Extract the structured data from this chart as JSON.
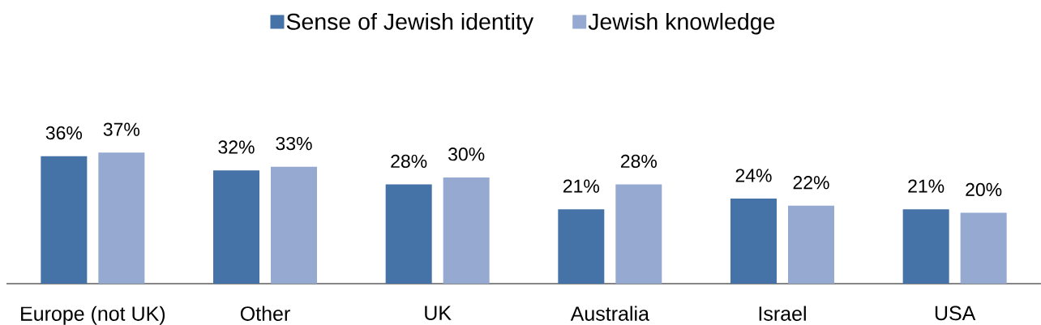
{
  "chart_data": {
    "type": "bar",
    "categories": [
      "Europe (not UK)",
      "Other",
      "UK",
      "Australia",
      "Israel",
      "USA"
    ],
    "series": [
      {
        "name": "Sense of Jewish identity",
        "color": "#4572a7",
        "values": [
          36,
          32,
          28,
          21,
          24,
          21
        ],
        "value_labels": [
          "36%",
          "32%",
          "28%",
          "21%",
          "24%",
          "21%"
        ]
      },
      {
        "name": "Jewish knowledge",
        "color": "#95a9d1",
        "values": [
          37,
          33,
          30,
          28,
          22,
          20
        ],
        "value_labels": [
          "37%",
          "33%",
          "30%",
          "28%",
          "22%",
          "20%"
        ]
      }
    ],
    "legend": "top",
    "tick_labels": "x"
  }
}
